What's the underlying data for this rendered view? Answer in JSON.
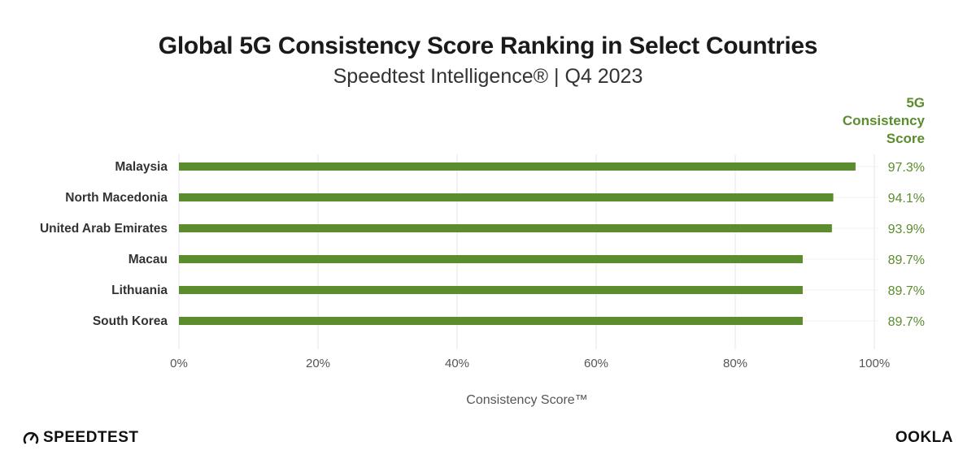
{
  "header": {
    "title": "Global 5G Consistency Score Ranking in Select Countries",
    "subtitle": "Speedtest Intelligence® | Q4 2023",
    "value_column_label": "5G\nConsistency\nScore"
  },
  "footer": {
    "left_logo": "SPEEDTEST",
    "right_logo": "OOKLA"
  },
  "colors": {
    "bar": "#5b8c2e",
    "grid": "#e6e6e6",
    "label": "#333333",
    "tick": "#555555"
  },
  "chart_data": {
    "type": "bar",
    "orientation": "horizontal",
    "categories": [
      "Malaysia",
      "North Macedonia",
      "United Arab Emirates",
      "Macau",
      "Lithuania",
      "South Korea"
    ],
    "values": [
      97.3,
      94.1,
      93.9,
      89.7,
      89.7,
      89.7
    ],
    "value_labels": [
      "97.3%",
      "94.1%",
      "93.9%",
      "89.7%",
      "89.7%",
      "89.7%"
    ],
    "xlabel": "Consistency Score™",
    "xlim": [
      0,
      100
    ],
    "xticks": [
      0,
      20,
      40,
      60,
      80,
      100
    ],
    "xtick_labels": [
      "0%",
      "20%",
      "40%",
      "60%",
      "80%",
      "100%"
    ],
    "grid": "vertical",
    "legend": "none"
  }
}
